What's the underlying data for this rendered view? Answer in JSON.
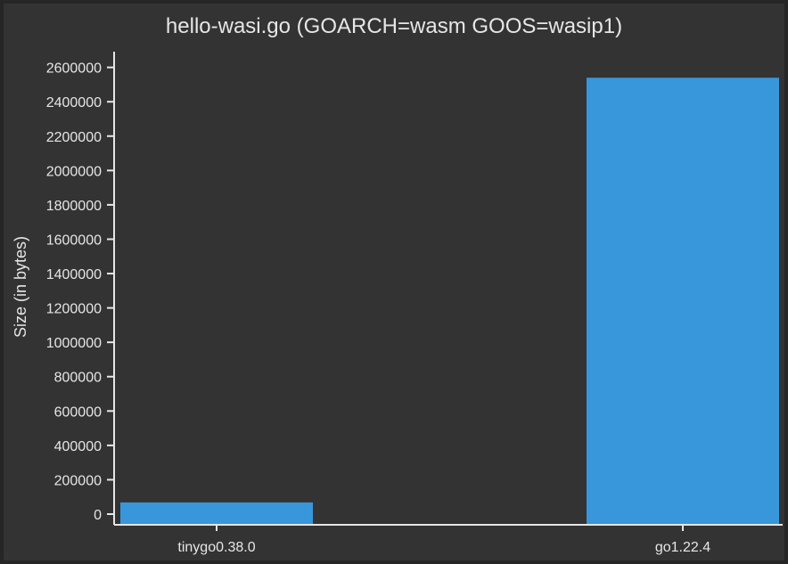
{
  "chart_data": {
    "type": "bar",
    "title": "hello-wasi.go (GOARCH=wasm GOOS=wasip1)",
    "xlabel": "",
    "ylabel": "Size (in bytes)",
    "categories": [
      "tinygo0.38.0",
      "go1.22.4"
    ],
    "values": [
      68000,
      2540000
    ],
    "ylim": [
      0,
      2650000
    ],
    "yticks": [
      0,
      200000,
      400000,
      600000,
      800000,
      1000000,
      1200000,
      1400000,
      1600000,
      1800000,
      2000000,
      2200000,
      2400000,
      2600000
    ],
    "grid": false,
    "legend": "none",
    "colors": {
      "background": "#333333",
      "bar": "#3896db",
      "text": "#e6e6e6",
      "axis": "#e6e6e6"
    }
  }
}
